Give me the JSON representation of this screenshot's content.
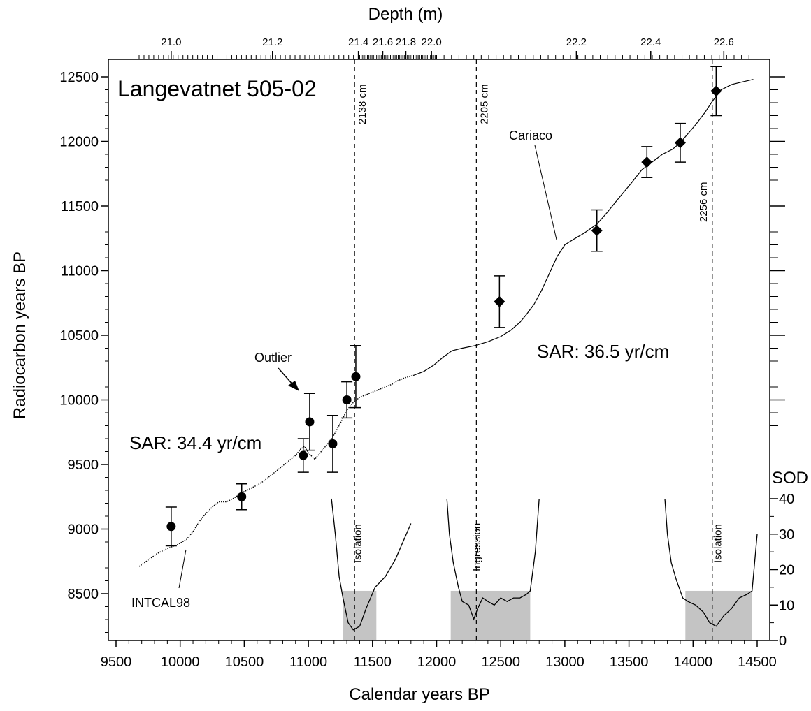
{
  "chart_data": {
    "type": "scatter",
    "title": "Langevatnet 505-02",
    "xlabel": "Calendar years BP",
    "ylabel": "Radiocarbon years BP",
    "top_axis_label": "Depth (m)",
    "right_axis_label": "SOD",
    "xlim": [
      9500,
      14500
    ],
    "ylim": [
      8100,
      12600
    ],
    "x_ticks": [
      9500,
      10000,
      10500,
      11000,
      11500,
      12000,
      12500,
      13000,
      13500,
      14000,
      14500
    ],
    "y_ticks": [
      8500,
      9000,
      9500,
      10000,
      10500,
      11000,
      11500,
      12000,
      12500
    ],
    "sod_ticks": [
      0,
      10,
      20,
      30,
      40
    ],
    "sod_lim": [
      0,
      40
    ],
    "depth_ticks": [
      {
        "label": "21.0",
        "x": 9930
      },
      {
        "label": "21.2",
        "x": 10720
      },
      {
        "label": "21.4",
        "x": 11390
      },
      {
        "label": "21.6",
        "x": 11580
      },
      {
        "label": "21.8",
        "x": 11760
      },
      {
        "label": "22.0",
        "x": 11960
      },
      {
        "label": "22.2",
        "x": 13090
      },
      {
        "label": "22.4",
        "x": 13670
      },
      {
        "label": "22.6",
        "x": 14240
      }
    ],
    "series": [
      {
        "name": "Langevatnet 505-02",
        "marker": "circle",
        "points": [
          {
            "x": 9930,
            "y": 9020,
            "err": 150
          },
          {
            "x": 10480,
            "y": 9250,
            "err": 100
          },
          {
            "x": 10960,
            "y": 9570,
            "err": 130
          },
          {
            "x": 11010,
            "y": 9830,
            "err": 220
          },
          {
            "x": 11190,
            "y": 9660,
            "err": 220
          },
          {
            "x": 11300,
            "y": 10000,
            "err": 140
          },
          {
            "x": 11370,
            "y": 10180,
            "err": 240
          }
        ]
      },
      {
        "name": "Langevatnet 505-02",
        "marker": "diamond",
        "points": [
          {
            "x": 12490,
            "y": 10760,
            "err": 200
          },
          {
            "x": 13250,
            "y": 11310,
            "err": 160
          },
          {
            "x": 13640,
            "y": 11840,
            "err": 120
          },
          {
            "x": 13900,
            "y": 11990,
            "err": 150
          },
          {
            "x": 14180,
            "y": 12390,
            "err": 190
          }
        ]
      }
    ],
    "calibration_curves": [
      {
        "name": "INTCAL98",
        "style": "dotted",
        "points": [
          [
            9680,
            8710
          ],
          [
            9750,
            8760
          ],
          [
            9820,
            8810
          ],
          [
            9900,
            8850
          ],
          [
            9980,
            8880
          ],
          [
            10050,
            8920
          ],
          [
            10100,
            8980
          ],
          [
            10150,
            9060
          ],
          [
            10200,
            9120
          ],
          [
            10250,
            9170
          ],
          [
            10300,
            9210
          ],
          [
            10360,
            9210
          ],
          [
            10420,
            9240
          ],
          [
            10480,
            9280
          ],
          [
            10540,
            9310
          ],
          [
            10600,
            9340
          ],
          [
            10650,
            9370
          ],
          [
            10700,
            9410
          ],
          [
            10750,
            9450
          ],
          [
            10800,
            9490
          ],
          [
            10850,
            9530
          ],
          [
            10900,
            9570
          ],
          [
            10940,
            9620
          ],
          [
            10970,
            9640
          ],
          [
            11000,
            9590
          ],
          [
            11050,
            9540
          ],
          [
            11100,
            9600
          ],
          [
            11150,
            9660
          ],
          [
            11200,
            9730
          ],
          [
            11250,
            9820
          ],
          [
            11300,
            9920
          ],
          [
            11350,
            9980
          ],
          [
            11400,
            10020
          ],
          [
            11450,
            10040
          ],
          [
            11500,
            10060
          ],
          [
            11550,
            10080
          ],
          [
            11600,
            10100
          ],
          [
            11650,
            10120
          ],
          [
            11700,
            10150
          ],
          [
            11750,
            10170
          ],
          [
            11820,
            10190
          ]
        ]
      },
      {
        "name": "Cariaco",
        "style": "solid",
        "points": [
          [
            11820,
            10190
          ],
          [
            11900,
            10220
          ],
          [
            11980,
            10270
          ],
          [
            12050,
            10330
          ],
          [
            12120,
            10380
          ],
          [
            12200,
            10400
          ],
          [
            12300,
            10420
          ],
          [
            12400,
            10450
          ],
          [
            12500,
            10490
          ],
          [
            12580,
            10540
          ],
          [
            12650,
            10600
          ],
          [
            12700,
            10660
          ],
          [
            12760,
            10740
          ],
          [
            12820,
            10850
          ],
          [
            12880,
            10980
          ],
          [
            12940,
            11110
          ],
          [
            13000,
            11200
          ],
          [
            13080,
            11250
          ],
          [
            13150,
            11290
          ],
          [
            13250,
            11360
          ],
          [
            13330,
            11450
          ],
          [
            13420,
            11560
          ],
          [
            13520,
            11680
          ],
          [
            13600,
            11780
          ],
          [
            13680,
            11840
          ],
          [
            13760,
            11900
          ],
          [
            13840,
            11940
          ],
          [
            13900,
            11990
          ],
          [
            13960,
            12060
          ],
          [
            14020,
            12130
          ],
          [
            14090,
            12220
          ],
          [
            14150,
            12310
          ],
          [
            14220,
            12400
          ],
          [
            14300,
            12440
          ],
          [
            14380,
            12460
          ],
          [
            14470,
            12480
          ]
        ]
      }
    ],
    "vertical_markers": [
      {
        "label": "2138 cm",
        "x": 11360
      },
      {
        "label": "2205 cm",
        "x": 12310
      },
      {
        "label": "2256 cm",
        "x": 14150
      }
    ],
    "shaded_regions": [
      {
        "x0": 11270,
        "x1": 11530,
        "sod_top": 14
      },
      {
        "x0": 12110,
        "x1": 12730,
        "sod_top": 14
      },
      {
        "x0": 13940,
        "x1": 14460,
        "sod_top": 14
      }
    ],
    "sod_curves": [
      {
        "name": "Isolation",
        "points": [
          [
            11180,
            40
          ],
          [
            11210,
            30
          ],
          [
            11240,
            18
          ],
          [
            11270,
            12
          ],
          [
            11310,
            5
          ],
          [
            11350,
            3
          ],
          [
            11400,
            4
          ],
          [
            11450,
            9
          ],
          [
            11520,
            15
          ],
          [
            11600,
            18
          ],
          [
            11680,
            23
          ],
          [
            11740,
            28
          ],
          [
            11800,
            33
          ]
        ]
      },
      {
        "name": "Ingression",
        "points": [
          [
            12080,
            40
          ],
          [
            12100,
            30
          ],
          [
            12130,
            22
          ],
          [
            12170,
            15
          ],
          [
            12200,
            11
          ],
          [
            12250,
            10
          ],
          [
            12290,
            6
          ],
          [
            12320,
            9
          ],
          [
            12360,
            12
          ],
          [
            12400,
            11
          ],
          [
            12450,
            10
          ],
          [
            12500,
            12
          ],
          [
            12550,
            11
          ],
          [
            12600,
            12
          ],
          [
            12650,
            12
          ],
          [
            12700,
            13
          ],
          [
            12730,
            14
          ],
          [
            12770,
            25
          ],
          [
            12800,
            40
          ]
        ]
      },
      {
        "name": "Isolation",
        "points": [
          [
            13780,
            40
          ],
          [
            13800,
            30
          ],
          [
            13830,
            22
          ],
          [
            13870,
            17
          ],
          [
            13920,
            12
          ],
          [
            13960,
            11
          ],
          [
            14020,
            10
          ],
          [
            14080,
            8
          ],
          [
            14130,
            5
          ],
          [
            14180,
            4
          ],
          [
            14240,
            7
          ],
          [
            14300,
            9
          ],
          [
            14360,
            12
          ],
          [
            14420,
            13
          ],
          [
            14460,
            14
          ],
          [
            14500,
            30
          ]
        ]
      }
    ],
    "annotations": [
      {
        "text": "Isolation",
        "x": 11410
      },
      {
        "text": "Ingression",
        "x": 12340
      },
      {
        "text": "Isolation",
        "x": 14220
      },
      {
        "text": "Outlier"
      },
      {
        "text": "SAR: 34.4 yr/cm"
      },
      {
        "text": "SAR: 36.5 yr/cm"
      },
      {
        "text": "INTCAL98"
      },
      {
        "text": "Cariaco"
      }
    ]
  }
}
